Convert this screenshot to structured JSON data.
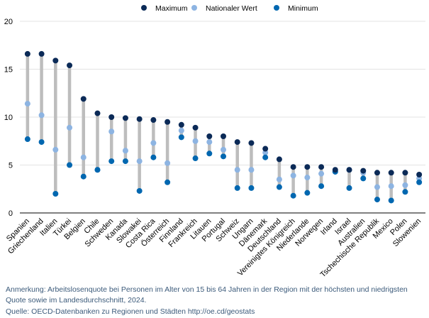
{
  "chart_data": {
    "type": "dot-range",
    "title": "",
    "xlabel": "",
    "ylabel": "",
    "ylim": [
      0,
      20
    ],
    "yticks": [
      0,
      5,
      10,
      15,
      20
    ],
    "categories": [
      "Spanien",
      "Griechenland",
      "Italien",
      "Türkei",
      "Belgien",
      "Chile",
      "Schweden",
      "Kanada",
      "Slowakei",
      "Costa Rica",
      "Österreich",
      "Finnland",
      "Frankreich",
      "Litauen",
      "Portugal",
      "Schweiz",
      "Ungarn",
      "Dänemark",
      "Deutschland",
      "Vereinigtes Königreich",
      "Niederlande",
      "Norwegen",
      "Irland",
      "Israel",
      "Australien",
      "Tschechische Republik",
      "Mexico",
      "Polen",
      "Slowenien"
    ],
    "series": [
      {
        "name": "Maximum",
        "color": "#0b2a57",
        "values": [
          16.6,
          16.6,
          15.9,
          15.4,
          11.9,
          10.4,
          10.0,
          9.9,
          9.8,
          9.7,
          9.5,
          9.2,
          8.9,
          8.0,
          8.0,
          7.4,
          7.3,
          6.7,
          5.6,
          4.8,
          4.8,
          4.8,
          4.5,
          4.5,
          4.4,
          4.2,
          4.2,
          4.2,
          4.0
        ]
      },
      {
        "name": "Nationaler Wert",
        "color": "#8db4e2",
        "values": [
          11.4,
          10.2,
          6.6,
          8.9,
          5.8,
          4.5,
          8.5,
          6.5,
          5.4,
          7.3,
          5.2,
          8.6,
          7.5,
          7.4,
          6.6,
          4.5,
          4.5,
          6.3,
          3.5,
          3.9,
          3.7,
          4.1,
          4.3,
          4.5,
          4.2,
          2.7,
          2.8,
          2.9,
          3.6
        ]
      },
      {
        "name": "Minimum",
        "color": "#0067b0",
        "values": [
          7.7,
          7.4,
          2.0,
          5.0,
          3.8,
          4.5,
          5.4,
          5.4,
          2.3,
          5.8,
          3.2,
          7.9,
          5.7,
          6.2,
          5.9,
          2.6,
          2.6,
          5.8,
          2.7,
          1.8,
          2.1,
          2.8,
          4.3,
          2.6,
          3.6,
          1.4,
          1.3,
          2.2,
          3.2
        ]
      }
    ],
    "range_color": "#bdbdbd",
    "legend_position": "top-center"
  },
  "footer": {
    "note": "Anmerkung: Arbeitslosenquote bei Personen im Alter von 15 bis 64 Jahren in der Region mit der höchsten und niedrigsten Quote sowie im Landesdurchschnitt, 2024.",
    "source": "Quelle: OECD-Datenbanken zu Regionen und Städten http://oe.cd/geostats"
  }
}
